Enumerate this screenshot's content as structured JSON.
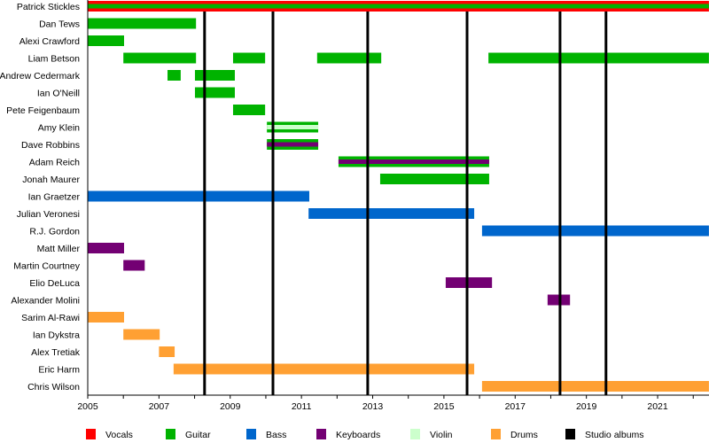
{
  "chart_data": {
    "type": "timeline",
    "title": "",
    "xlim": [
      2005,
      2022.44
    ],
    "x_ticks": [
      2005,
      2007,
      2009,
      2011,
      2013,
      2015,
      2017,
      2019,
      2021
    ],
    "colors": {
      "Vocals": "#ff0000",
      "Guitar": "#00b300",
      "Bass": "#0066cc",
      "Keyboards": "#730073",
      "Violin": "#ccffcc",
      "Drums": "#ffa033",
      "Studio albums": "#000000"
    },
    "legend": [
      "Vocals",
      "Guitar",
      "Bass",
      "Keyboards",
      "Violin",
      "Drums",
      "Studio albums"
    ],
    "legend_position": "bottom",
    "studio_albums": [
      2008.28,
      2010.2,
      2012.86,
      2015.65,
      2018.26,
      2019.55
    ],
    "members": [
      {
        "name": "Patrick Stickles",
        "spans": [
          {
            "start": 2005,
            "end": 2022.44,
            "role": "Vocals",
            "secondary": "Guitar"
          }
        ]
      },
      {
        "name": "Dan Tews",
        "spans": [
          {
            "start": 2005,
            "end": 2008.04,
            "role": "Guitar"
          }
        ]
      },
      {
        "name": "Alexi Crawford",
        "spans": [
          {
            "start": 2005,
            "end": 2006.02,
            "role": "Guitar"
          }
        ]
      },
      {
        "name": "Liam Betson",
        "spans": [
          {
            "start": 2006,
            "end": 2008.04,
            "role": "Guitar"
          },
          {
            "start": 2009.08,
            "end": 2009.98,
            "role": "Guitar"
          },
          {
            "start": 2011.44,
            "end": 2013.24,
            "role": "Guitar"
          },
          {
            "start": 2016.25,
            "end": 2022.44,
            "role": "Guitar"
          }
        ]
      },
      {
        "name": "Andrew Cedermark",
        "spans": [
          {
            "start": 2007.24,
            "end": 2007.61,
            "role": "Guitar"
          },
          {
            "start": 2008.01,
            "end": 2009.13,
            "role": "Guitar"
          }
        ]
      },
      {
        "name": "Ian O'Neill",
        "spans": [
          {
            "start": 2008.01,
            "end": 2009.13,
            "role": "Guitar"
          }
        ]
      },
      {
        "name": "Pete Feigenbaum",
        "spans": [
          {
            "start": 2009.08,
            "end": 2009.98,
            "role": "Guitar"
          }
        ]
      },
      {
        "name": "Amy Klein",
        "spans": [
          {
            "start": 2010.03,
            "end": 2011.47,
            "role": "Guitar",
            "secondary": "Violin"
          }
        ]
      },
      {
        "name": "Dave Robbins",
        "spans": [
          {
            "start": 2010.03,
            "end": 2011.47,
            "role": "Guitar",
            "secondary": "Keyboards"
          }
        ]
      },
      {
        "name": "Adam Reich",
        "spans": [
          {
            "start": 2012.04,
            "end": 2016.27,
            "role": "Guitar",
            "secondary": "Keyboards"
          }
        ]
      },
      {
        "name": "Jonah Maurer",
        "spans": [
          {
            "start": 2013.21,
            "end": 2016.27,
            "role": "Guitar"
          }
        ]
      },
      {
        "name": "Ian Graetzer",
        "spans": [
          {
            "start": 2005,
            "end": 2011.22,
            "role": "Bass"
          }
        ]
      },
      {
        "name": "Julian Veronesi",
        "spans": [
          {
            "start": 2011.2,
            "end": 2015.85,
            "role": "Bass"
          }
        ]
      },
      {
        "name": "R.J. Gordon",
        "spans": [
          {
            "start": 2016.07,
            "end": 2022.44,
            "role": "Bass"
          }
        ]
      },
      {
        "name": "Matt Miller",
        "spans": [
          {
            "start": 2005,
            "end": 2006.02,
            "role": "Keyboards"
          }
        ]
      },
      {
        "name": "Martin Courtney",
        "spans": [
          {
            "start": 2006,
            "end": 2006.6,
            "role": "Keyboards"
          }
        ]
      },
      {
        "name": "Elio DeLuca",
        "spans": [
          {
            "start": 2015.05,
            "end": 2016.35,
            "role": "Keyboards"
          }
        ]
      },
      {
        "name": "Alexander Molini",
        "spans": [
          {
            "start": 2017.91,
            "end": 2018.54,
            "role": "Keyboards"
          }
        ]
      },
      {
        "name": "Sarim Al-Rawi",
        "spans": [
          {
            "start": 2005,
            "end": 2006.02,
            "role": "Drums"
          }
        ]
      },
      {
        "name": "Ian Dykstra",
        "spans": [
          {
            "start": 2006,
            "end": 2007.02,
            "role": "Drums"
          }
        ]
      },
      {
        "name": "Alex Tretiak",
        "spans": [
          {
            "start": 2007,
            "end": 2007.44,
            "role": "Drums"
          }
        ]
      },
      {
        "name": "Eric Harm",
        "spans": [
          {
            "start": 2007.41,
            "end": 2015.85,
            "role": "Drums"
          }
        ]
      },
      {
        "name": "Chris Wilson",
        "spans": [
          {
            "start": 2016.07,
            "end": 2022.44,
            "role": "Drums"
          }
        ]
      }
    ]
  }
}
